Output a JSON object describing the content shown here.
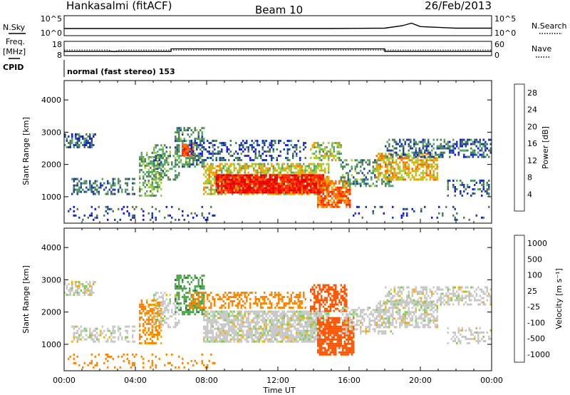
{
  "header": {
    "station": "Hankasalmi (fitACF)",
    "beam": "Beam 10",
    "date": "26/Feb/2013"
  },
  "labels": {
    "nsky": "N.Sky",
    "nsearch": "N.Search",
    "freq": "Freq.",
    "mhz": "[MHz]",
    "cpid": "CPID",
    "nave": "Nave",
    "cpid_value": "normal (fast stereo) 153",
    "power_label": "Power [dB]",
    "velocity_label": "Velocity [m s⁻¹]",
    "ylabel": "Slant Range [km]",
    "xlabel": "Time UT"
  },
  "ticks": {
    "noise_left": [
      "10^5",
      "10^0"
    ],
    "noise_right": [
      "10^5",
      "10^0"
    ],
    "freq_left": [
      "18",
      "8"
    ],
    "nave_right": [
      "60",
      "0"
    ],
    "range": [
      "1000",
      "2000",
      "3000",
      "4000"
    ],
    "time": [
      "00:00",
      "04:00",
      "08:00",
      "12:00",
      "16:00",
      "20:00",
      "00:00"
    ]
  },
  "colors": {
    "power_scale": [
      "#1212ff",
      "#1c3fa8",
      "#4f7f57",
      "#54a96a",
      "#a2cf35",
      "#f2a400",
      "#ff6b00",
      "#ff2a00",
      "#e90000"
    ],
    "velocity_scale": [
      "#1212ff",
      "#1c3fa8",
      "#3c6a3c",
      "#4aa84a",
      "#7bd04b",
      "#c8c8c8",
      "#f3b000",
      "#ff8500",
      "#ff5500",
      "#ff2000",
      "#e60000"
    ]
  },
  "chart_data": [
    {
      "type": "line",
      "title": "N.Sky / N.Search",
      "xlim": [
        0,
        24
      ],
      "ylim_log10": [
        0,
        5
      ],
      "series": [
        {
          "name": "N.Sky",
          "x": [
            0,
            3,
            6,
            9,
            12,
            15,
            18,
            19,
            19.5,
            20,
            22,
            24
          ],
          "log10_values": [
            1.6,
            1.6,
            1.6,
            1.6,
            1.6,
            1.6,
            1.7,
            2.5,
            3.3,
            2.2,
            1.7,
            1.7
          ]
        }
      ]
    },
    {
      "type": "line",
      "title": "Freq. / Nave",
      "xlim": [
        0,
        24
      ],
      "ylim_freq": [
        8,
        18
      ],
      "ylim_nave": [
        0,
        60
      ],
      "series": [
        {
          "name": "Freq.",
          "x": [
            0,
            2.5,
            2.8,
            3.1,
            24
          ],
          "values": [
            12,
            12,
            10.5,
            12,
            12
          ]
        },
        {
          "name": "Nave",
          "x": [
            0,
            6,
            6,
            18,
            18,
            24
          ],
          "values": [
            17,
            17,
            30,
            30,
            17,
            17
          ]
        }
      ]
    },
    {
      "type": "heatmap",
      "title": "Power",
      "xlabel": "Time UT",
      "ylabel": "Slant Range [km]",
      "xlim": [
        0,
        24
      ],
      "ylim": [
        180,
        4600
      ],
      "colorbar": {
        "label": "Power [dB]",
        "ticks": [
          4,
          8,
          12,
          16,
          20,
          24,
          28
        ],
        "range": [
          0,
          30
        ]
      },
      "regions": [
        {
          "t0": 0.0,
          "t1": 1.8,
          "r0": 2500,
          "r1": 2950,
          "value": 7,
          "density": 0.55
        },
        {
          "t0": 0.4,
          "t1": 4.0,
          "r0": 1050,
          "r1": 1550,
          "value": 8,
          "density": 0.45
        },
        {
          "t0": 0.0,
          "t1": 8.5,
          "r0": 250,
          "r1": 650,
          "value": 5,
          "density": 0.12
        },
        {
          "t0": 4.2,
          "t1": 5.4,
          "r0": 1000,
          "r1": 2350,
          "value": 12,
          "density": 0.5
        },
        {
          "t0": 5.0,
          "t1": 6.4,
          "r0": 1500,
          "r1": 2600,
          "value": 10,
          "density": 0.4
        },
        {
          "t0": 6.2,
          "t1": 7.8,
          "r0": 1900,
          "r1": 3150,
          "value": 10,
          "density": 0.5
        },
        {
          "t0": 6.6,
          "t1": 7.2,
          "r0": 2250,
          "r1": 2600,
          "value": 24,
          "density": 0.7
        },
        {
          "t0": 7.0,
          "t1": 13.5,
          "r0": 2100,
          "r1": 2700,
          "value": 6,
          "density": 0.35
        },
        {
          "t0": 7.8,
          "t1": 14.8,
          "r0": 1050,
          "r1": 2000,
          "value": 16,
          "density": 0.65
        },
        {
          "t0": 8.5,
          "t1": 14.5,
          "r0": 1100,
          "r1": 1650,
          "value": 27,
          "density": 0.9
        },
        {
          "t0": 13.8,
          "t1": 15.5,
          "r0": 2100,
          "r1": 2650,
          "value": 14,
          "density": 0.5
        },
        {
          "t0": 14.2,
          "t1": 16.0,
          "r0": 650,
          "r1": 1500,
          "value": 22,
          "density": 0.75
        },
        {
          "t0": 15.5,
          "t1": 18.5,
          "r0": 1300,
          "r1": 2100,
          "value": 10,
          "density": 0.45
        },
        {
          "t0": 17.5,
          "t1": 21.0,
          "r0": 1500,
          "r1": 2300,
          "value": 18,
          "density": 0.6
        },
        {
          "t0": 18.0,
          "t1": 24.0,
          "r0": 2200,
          "r1": 2750,
          "value": 7,
          "density": 0.5
        },
        {
          "t0": 21.5,
          "t1": 24.0,
          "r0": 1000,
          "r1": 1500,
          "value": 6,
          "density": 0.35
        },
        {
          "t0": 16.0,
          "t1": 24.0,
          "r0": 250,
          "r1": 700,
          "value": 5,
          "density": 0.08
        }
      ]
    },
    {
      "type": "heatmap",
      "title": "Velocity",
      "xlabel": "Time UT",
      "ylabel": "Slant Range [km]",
      "xlim": [
        0,
        24
      ],
      "ylim": [
        180,
        4600
      ],
      "colorbar": {
        "label": "Velocity [m s⁻¹]",
        "ticks": [
          1000,
          500,
          100,
          25,
          -25,
          -100,
          -500,
          -1000
        ]
      },
      "regions": [
        {
          "t0": 0.0,
          "t1": 1.8,
          "r0": 2500,
          "r1": 2950,
          "value": 0,
          "density": 0.55
        },
        {
          "t0": 0.4,
          "t1": 4.0,
          "r0": 1050,
          "r1": 1550,
          "value": 0,
          "density": 0.45
        },
        {
          "t0": 0.0,
          "t1": 8.5,
          "r0": 250,
          "r1": 650,
          "value": -150,
          "density": 0.12
        },
        {
          "t0": 4.2,
          "t1": 5.4,
          "r0": 1000,
          "r1": 2350,
          "value": -120,
          "density": 0.5
        },
        {
          "t0": 5.0,
          "t1": 6.4,
          "r0": 1500,
          "r1": 2600,
          "value": 0,
          "density": 0.4
        },
        {
          "t0": 6.2,
          "t1": 7.8,
          "r0": 1900,
          "r1": 3150,
          "value": 80,
          "density": 0.5
        },
        {
          "t0": 7.0,
          "t1": 13.5,
          "r0": 2100,
          "r1": 2600,
          "value": -200,
          "density": 0.4
        },
        {
          "t0": 7.8,
          "t1": 14.8,
          "r0": 1050,
          "r1": 2000,
          "value": 0,
          "density": 0.8
        },
        {
          "t0": 13.8,
          "t1": 15.8,
          "r0": 2000,
          "r1": 2850,
          "value": -300,
          "density": 0.6
        },
        {
          "t0": 14.2,
          "t1": 16.2,
          "r0": 650,
          "r1": 1800,
          "value": -400,
          "density": 0.75
        },
        {
          "t0": 15.5,
          "t1": 18.5,
          "r0": 1300,
          "r1": 2100,
          "value": 0,
          "density": 0.45
        },
        {
          "t0": 17.5,
          "t1": 21.0,
          "r0": 1500,
          "r1": 2300,
          "value": 0,
          "density": 0.6
        },
        {
          "t0": 18.0,
          "t1": 24.0,
          "r0": 2200,
          "r1": 2750,
          "value": 0,
          "density": 0.5
        },
        {
          "t0": 21.5,
          "t1": 24.0,
          "r0": 1000,
          "r1": 1500,
          "value": 0,
          "density": 0.35
        }
      ]
    }
  ]
}
